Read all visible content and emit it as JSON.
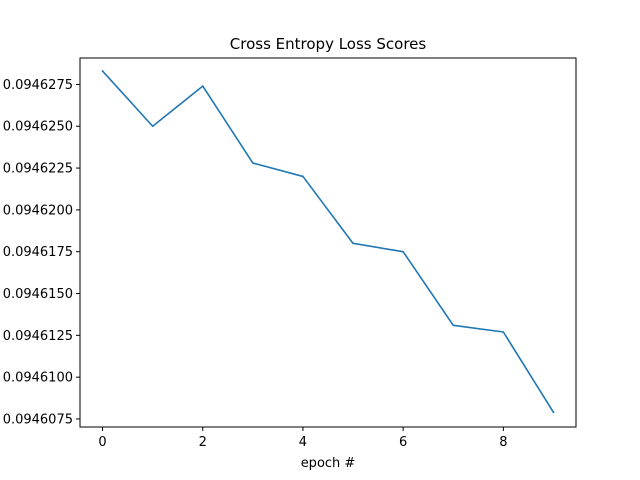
{
  "chart_data": {
    "type": "line",
    "title": "Cross Entropy Loss Scores",
    "xlabel": "epoch #",
    "ylabel": "",
    "grid": false,
    "legend": "none",
    "xlim": [
      -0.45,
      9.45
    ],
    "ylim": [
      0.09460702,
      0.09462908
    ],
    "x_ticks": [
      0,
      2,
      4,
      6,
      8
    ],
    "x_tick_labels": [
      "0",
      "2",
      "4",
      "6",
      "8"
    ],
    "y_ticks": [
      0.0946075,
      0.09461,
      0.0946125,
      0.094615,
      0.0946175,
      0.09462,
      0.0946225,
      0.094625,
      0.0946275
    ],
    "y_tick_labels": [
      "0.0946075",
      "0.0946100",
      "0.0946125",
      "0.0946150",
      "0.0946175",
      "0.0946200",
      "0.0946225",
      "0.0946250",
      "0.0946275"
    ],
    "series": [
      {
        "color": "#1f77b4",
        "x": [
          0,
          1,
          2,
          3,
          4,
          5,
          6,
          7,
          8,
          9
        ],
        "y": [
          0.0946283,
          0.094625,
          0.0946274,
          0.0946228,
          0.094622,
          0.094618,
          0.0946175,
          0.0946131,
          0.0946127,
          0.0946079
        ]
      }
    ]
  }
}
